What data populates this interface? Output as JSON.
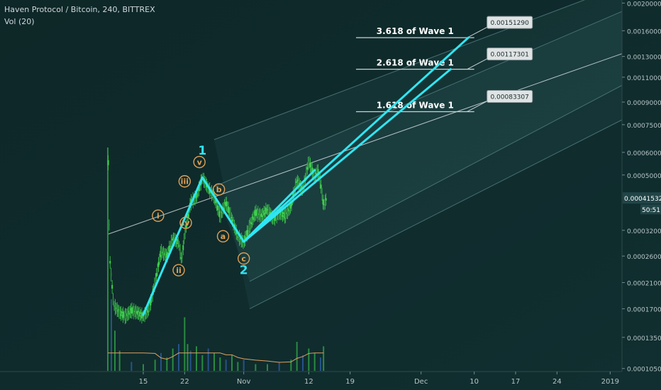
{
  "header": {
    "symbol_line": "Haven Protocol / Bitcoin, 240, BITTREX",
    "volume_line": "Vol (20)"
  },
  "colors": {
    "background": "#0f2a2b",
    "candle_up": "#3fcf4f",
    "candle_down": "#2b7a3a",
    "wave_lines": "#2fe6f2",
    "wave_label": "#2fe6f2",
    "subwave_label": "#e2a155",
    "channel_line": "#5c8a8c",
    "price_tag": "#1d3d3e",
    "volume_up": "#2e9c46",
    "volume_down": "#2a5a9a",
    "volume_ma": "#e0a060"
  },
  "chart_data": {
    "type": "line",
    "title": "Haven Protocol / Bitcoin, 240, BITTREX",
    "y_scale": "log",
    "ylim": [
      9.9e-05,
      0.00205
    ],
    "price_axis_ticks": [
      "0.00200000",
      "0.00160000",
      "0.00130000",
      "0.00110000",
      "0.00090000",
      "0.00075000",
      "0.00060000",
      "0.00050000",
      "0.00041532",
      "0.00032000",
      "0.00026000",
      "0.00021000",
      "0.00017000",
      "0.00013500",
      "0.00010500"
    ],
    "current_price": "0.00041532",
    "countdown": "50:51",
    "x_axis_ticks": [
      "15",
      "22",
      "Nov",
      "12",
      "19",
      "Dec",
      "10",
      "17",
      "24",
      "2019"
    ],
    "x_tick_days": [
      15,
      22,
      32,
      43,
      50,
      62,
      71,
      78,
      85,
      94
    ],
    "price_path": [
      {
        "day": 9.0,
        "price": 0.00071
      },
      {
        "day": 9.3,
        "price": 0.00026
      },
      {
        "day": 10.0,
        "price": 0.000175
      },
      {
        "day": 11.0,
        "price": 0.000165
      },
      {
        "day": 12.0,
        "price": 0.00016
      },
      {
        "day": 13.0,
        "price": 0.000168
      },
      {
        "day": 14.0,
        "price": 0.000165
      },
      {
        "day": 15.0,
        "price": 0.00016
      },
      {
        "day": 16.0,
        "price": 0.00017
      },
      {
        "day": 17.0,
        "price": 0.00021
      },
      {
        "day": 18.0,
        "price": 0.00027
      },
      {
        "day": 19.0,
        "price": 0.00026
      },
      {
        "day": 20.0,
        "price": 0.0003
      },
      {
        "day": 21.0,
        "price": 0.00029
      },
      {
        "day": 21.5,
        "price": 0.00025
      },
      {
        "day": 22.0,
        "price": 0.00031
      },
      {
        "day": 23.0,
        "price": 0.0004
      },
      {
        "day": 24.0,
        "price": 0.00042
      },
      {
        "day": 25.0,
        "price": 0.00049
      },
      {
        "day": 26.0,
        "price": 0.00045
      },
      {
        "day": 27.0,
        "price": 0.00042
      },
      {
        "day": 28.0,
        "price": 0.00036
      },
      {
        "day": 29.0,
        "price": 0.0004
      },
      {
        "day": 30.0,
        "price": 0.00035
      },
      {
        "day": 31.0,
        "price": 0.000305
      },
      {
        "day": 32.0,
        "price": 0.00029
      },
      {
        "day": 33.0,
        "price": 0.00033
      },
      {
        "day": 34.0,
        "price": 0.00037
      },
      {
        "day": 35.0,
        "price": 0.00036
      },
      {
        "day": 36.0,
        "price": 0.00038
      },
      {
        "day": 37.0,
        "price": 0.00035
      },
      {
        "day": 38.0,
        "price": 0.00037
      },
      {
        "day": 39.0,
        "price": 0.00036
      },
      {
        "day": 40.0,
        "price": 0.00039
      },
      {
        "day": 41.0,
        "price": 0.00048
      },
      {
        "day": 42.0,
        "price": 0.00044
      },
      {
        "day": 43.0,
        "price": 0.00056
      },
      {
        "day": 44.0,
        "price": 0.00049
      },
      {
        "day": 44.5,
        "price": 0.00052
      },
      {
        "day": 45.0,
        "price": 0.00047
      },
      {
        "day": 45.5,
        "price": 0.00039
      },
      {
        "day": 46.0,
        "price": 0.000415
      }
    ],
    "volume": {
      "label": "Vol (20)",
      "bars": [
        {
          "day": 9.0,
          "value": 1.0
        },
        {
          "day": 9.6,
          "value": 0.32
        },
        {
          "day": 10.2,
          "value": 0.18
        },
        {
          "day": 11.0,
          "value": 0.09
        },
        {
          "day": 13.0,
          "value": 0.04
        },
        {
          "day": 15.0,
          "value": 0.03
        },
        {
          "day": 17.0,
          "value": 0.05
        },
        {
          "day": 18.0,
          "value": 0.08
        },
        {
          "day": 19.0,
          "value": 0.06
        },
        {
          "day": 20.0,
          "value": 0.1
        },
        {
          "day": 21.0,
          "value": 0.12
        },
        {
          "day": 22.0,
          "value": 0.24
        },
        {
          "day": 22.5,
          "value": 0.12
        },
        {
          "day": 23.0,
          "value": 0.09
        },
        {
          "day": 24.0,
          "value": 0.11
        },
        {
          "day": 25.0,
          "value": 0.07
        },
        {
          "day": 26.0,
          "value": 0.1
        },
        {
          "day": 27.0,
          "value": 0.08
        },
        {
          "day": 28.0,
          "value": 0.06
        },
        {
          "day": 29.0,
          "value": 0.05
        },
        {
          "day": 30.0,
          "value": 0.07
        },
        {
          "day": 31.0,
          "value": 0.04
        },
        {
          "day": 32.0,
          "value": 0.05
        },
        {
          "day": 34.0,
          "value": 0.03
        },
        {
          "day": 36.0,
          "value": 0.03
        },
        {
          "day": 38.0,
          "value": 0.04
        },
        {
          "day": 40.0,
          "value": 0.05
        },
        {
          "day": 41.0,
          "value": 0.13
        },
        {
          "day": 42.0,
          "value": 0.07
        },
        {
          "day": 43.0,
          "value": 0.1
        },
        {
          "day": 44.0,
          "value": 0.08
        },
        {
          "day": 45.0,
          "value": 0.06
        },
        {
          "day": 45.5,
          "value": 0.11
        }
      ]
    },
    "channel": {
      "lines": [
        {
          "start": {
            "day": 9.0,
            "price": 0.00031
          },
          "end": {
            "day": 96,
            "price": 0.00133
          }
        },
        {
          "start": {
            "day": 27.0,
            "price": 0.000665
          },
          "end": {
            "day": 96,
            "price": 0.0023
          }
        },
        {
          "start": {
            "day": 27.0,
            "price": 0.000455
          },
          "end": {
            "day": 96,
            "price": 0.00187
          }
        },
        {
          "start": {
            "day": 33.0,
            "price": 0.000212
          },
          "end": {
            "day": 96,
            "price": 0.00103
          }
        },
        {
          "start": {
            "day": 33.0,
            "price": 0.00017
          },
          "end": {
            "day": 96,
            "price": 0.00078
          }
        }
      ]
    },
    "wave_lines": [
      {
        "from": {
          "day": 15.0,
          "price": 0.000162
        },
        "to": {
          "day": 25.0,
          "price": 0.00049
        }
      },
      {
        "from": {
          "day": 25.0,
          "price": 0.00049
        },
        "to": {
          "day": 32.0,
          "price": 0.000292
        }
      },
      {
        "from": {
          "day": 32.0,
          "price": 0.000292
        },
        "to": {
          "day": 70.0,
          "price": 0.0015129
        }
      },
      {
        "from": {
          "day": 32.0,
          "price": 0.000292
        },
        "to": {
          "day": 67.0,
          "price": 0.00117301
        }
      },
      {
        "from": {
          "day": 32.0,
          "price": 0.000292
        },
        "to": {
          "day": 44.0,
          "price": 0.00052
        }
      }
    ],
    "fib_levels": [
      {
        "label": "3.618 of Wave 1",
        "price": 0.0015129,
        "tag": "0.00151290",
        "from_day": 51,
        "to_day": 71
      },
      {
        "label": "2.618 of Wave 1",
        "price": 0.00117301,
        "tag": "0.00117301",
        "from_day": 51,
        "to_day": 71
      },
      {
        "label": "1.618 of Wave 1",
        "price": 0.00083307,
        "tag": "0.00083307",
        "from_day": 51,
        "to_day": 71
      }
    ],
    "wave_labels": [
      {
        "text": "1",
        "day": 25.0,
        "price": 0.00059,
        "style": "major"
      },
      {
        "text": "2",
        "day": 32.0,
        "price": 0.000225,
        "style": "major"
      },
      {
        "text": "i",
        "day": 17.5,
        "price": 0.00036,
        "style": "circled"
      },
      {
        "text": "ii",
        "day": 21.0,
        "price": 0.000232,
        "style": "circled"
      },
      {
        "text": "iii",
        "day": 22.0,
        "price": 0.000475,
        "style": "circled"
      },
      {
        "text": "iv",
        "day": 22.2,
        "price": 0.00034,
        "style": "circled"
      },
      {
        "text": "v",
        "day": 24.5,
        "price": 0.000555,
        "style": "circled"
      },
      {
        "text": "a",
        "day": 28.5,
        "price": 0.000305,
        "style": "circled"
      },
      {
        "text": "b",
        "day": 27.8,
        "price": 0.000445,
        "style": "circled"
      },
      {
        "text": "c",
        "day": 32.0,
        "price": 0.000255,
        "style": "circled"
      }
    ]
  }
}
